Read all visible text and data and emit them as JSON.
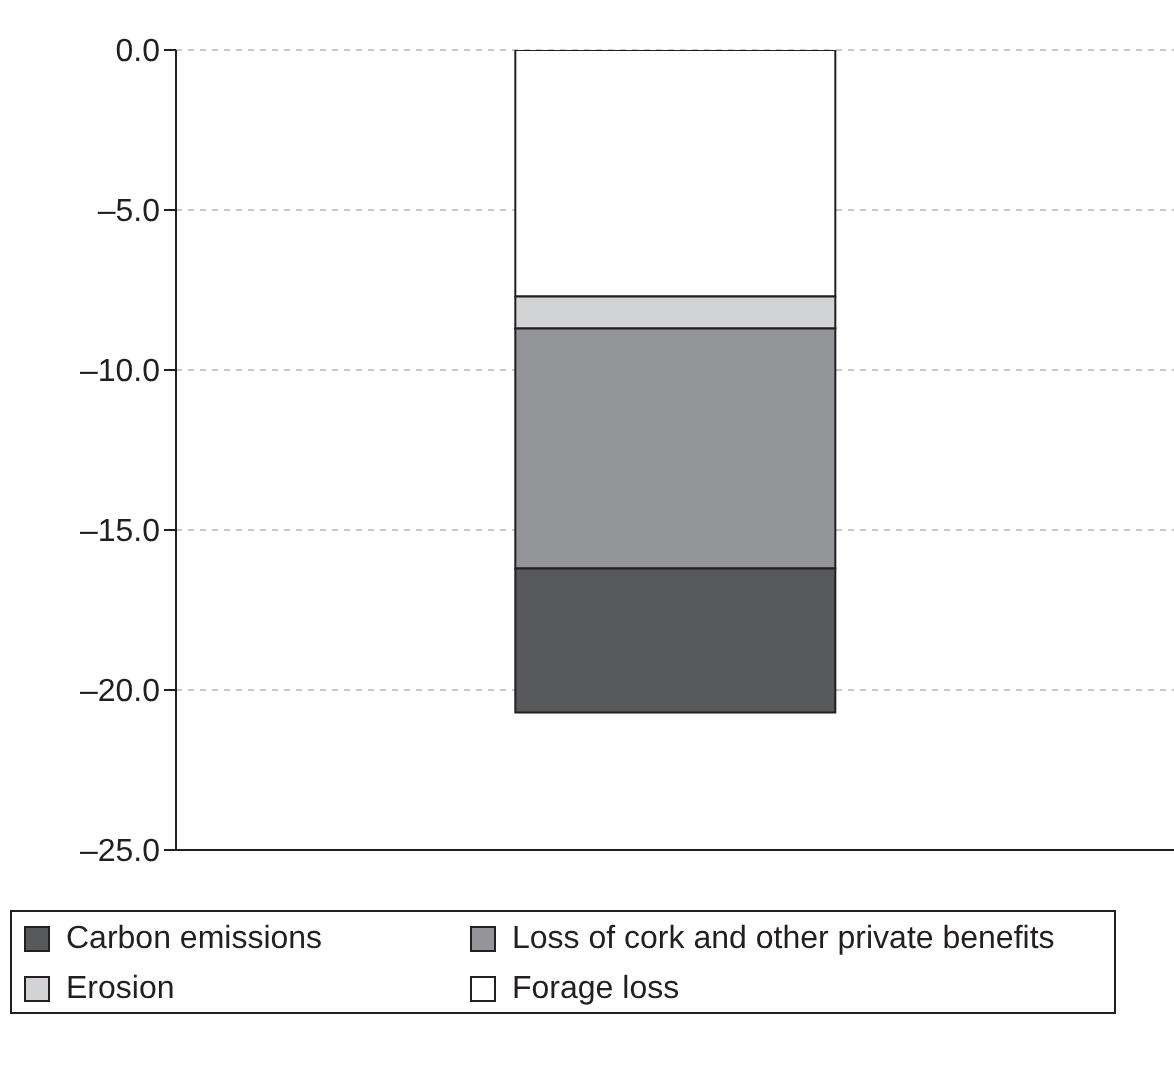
{
  "chart_data": {
    "type": "bar",
    "stacked": true,
    "categories": [
      null
    ],
    "series": [
      {
        "name": "Forage loss",
        "color": "#ffffff",
        "values": [
          -7.7
        ]
      },
      {
        "name": "Erosion",
        "color": "#d1d3d4",
        "values": [
          -1.0
        ]
      },
      {
        "name": "Loss of cork and other private benefits",
        "color": "#939598",
        "values": [
          -7.5
        ]
      },
      {
        "name": "Carbon emissions",
        "color": "#58595b",
        "values": [
          -4.5
        ]
      }
    ],
    "ylim": [
      -25,
      0
    ],
    "yticks": [
      {
        "value": 0,
        "label": "0.0"
      },
      {
        "value": -5,
        "label": "–5.0"
      },
      {
        "value": -10,
        "label": "–10.0"
      },
      {
        "value": -15,
        "label": "–15.0"
      },
      {
        "value": -20,
        "label": "–20.0"
      },
      {
        "value": -25,
        "label": "–25.0"
      }
    ],
    "grid": "y",
    "legend": "bottom"
  }
}
